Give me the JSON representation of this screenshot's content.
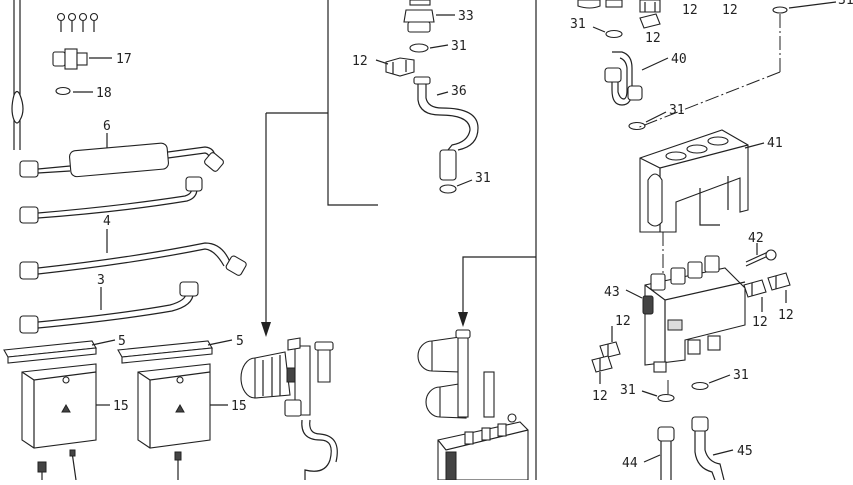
{
  "callouts": {
    "c17": "17",
    "c18": "18",
    "c6": "6",
    "c4": "4",
    "c3": "3",
    "c5a": "5",
    "c5b": "5",
    "c15a": "15",
    "c15b": "15",
    "c33": "33",
    "c31a": "31",
    "c12a": "12",
    "c36": "36",
    "c31b": "31",
    "c31c": "31",
    "c12b": "12",
    "c12c": "12",
    "c12d": "12",
    "c40": "40",
    "c31d": "31",
    "c41": "41",
    "c42": "42",
    "c43": "43",
    "c12e": "12",
    "c12f": "12",
    "c12g": "12",
    "c12h": "12",
    "c31e": "31",
    "c31f": "31",
    "c44": "44",
    "c45": "45",
    "c31g": "31"
  }
}
